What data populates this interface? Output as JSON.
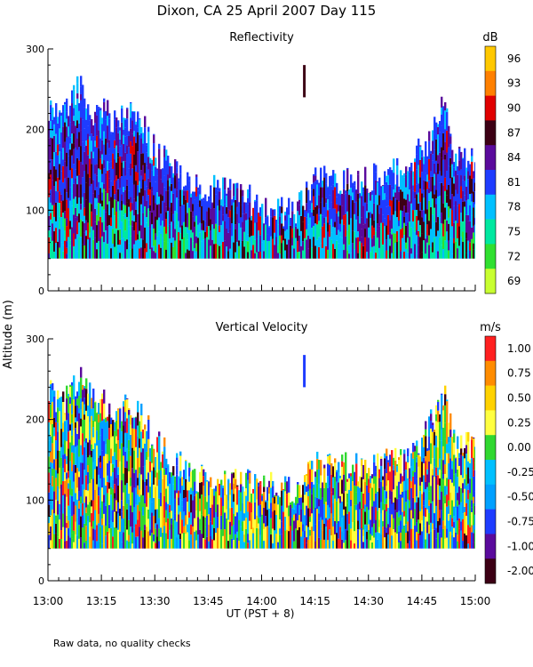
{
  "page_title": "Dixon, CA 25 April 2007  Day 115",
  "footnote": "Raw data, no quality checks",
  "xaxis": {
    "label": "UT  (PST + 8)",
    "ticks": [
      "13:00",
      "13:15",
      "13:30",
      "13:45",
      "14:00",
      "14:15",
      "14:30",
      "14:45",
      "15:00"
    ],
    "range_minutes": [
      0,
      120
    ]
  },
  "yaxis_label": "Altitude (m)",
  "chart_data": [
    {
      "type": "heatmap",
      "title": "Reflectivity",
      "ylim": [
        0,
        300
      ],
      "yticks": [
        "0",
        "100",
        "200",
        "300"
      ],
      "colorbar": {
        "unit": "dB",
        "labels": [
          "96",
          "93",
          "90",
          "87",
          "84",
          "81",
          "78",
          "75",
          "72",
          "69"
        ],
        "colors": [
          "#ffc800",
          "#ff8000",
          "#e00000",
          "#3c0014",
          "#5a0a9c",
          "#1e3cff",
          "#00c0ff",
          "#00e8a0",
          "#30e030",
          "#c8ff30"
        ]
      },
      "field": {
        "base_m": 40,
        "top_profile_m": [
          {
            "t": 0,
            "top": 230
          },
          {
            "t": 5,
            "top": 225
          },
          {
            "t": 9,
            "top": 255
          },
          {
            "t": 12,
            "top": 225
          },
          {
            "t": 18,
            "top": 215
          },
          {
            "t": 25,
            "top": 215
          },
          {
            "t": 30,
            "top": 170
          },
          {
            "t": 35,
            "top": 150
          },
          {
            "t": 40,
            "top": 130
          },
          {
            "t": 45,
            "top": 125
          },
          {
            "t": 55,
            "top": 120
          },
          {
            "t": 60,
            "top": 100
          },
          {
            "t": 70,
            "top": 100
          },
          {
            "t": 75,
            "top": 140
          },
          {
            "t": 90,
            "top": 140
          },
          {
            "t": 100,
            "top": 150
          },
          {
            "t": 106,
            "top": 180
          },
          {
            "t": 111,
            "top": 230
          },
          {
            "t": 114,
            "top": 170
          },
          {
            "t": 120,
            "top": 165
          }
        ]
      },
      "marker": {
        "time_min": 72,
        "alt_low": 240,
        "alt_high": 280,
        "color": "#3c0014"
      }
    },
    {
      "type": "heatmap",
      "title": "Vertical Velocity",
      "ylim": [
        0,
        300
      ],
      "yticks": [
        "0",
        "100",
        "200",
        "300"
      ],
      "colorbar": {
        "unit": "m/s",
        "labels": [
          "1.00",
          "0.75",
          "0.50",
          "0.25",
          "0.00",
          "-0.25",
          "-0.50",
          "-0.75",
          "-1.00",
          "-2.00"
        ],
        "colors": [
          "#ff2020",
          "#ff8c00",
          "#ffd200",
          "#ffff40",
          "#30d830",
          "#00c0ff",
          "#00a0ff",
          "#1e3cff",
          "#5a0a9c",
          "#3c0014"
        ]
      },
      "field": {
        "base_m": 40,
        "top_profile_m": [
          {
            "t": 0,
            "top": 230
          },
          {
            "t": 5,
            "top": 225
          },
          {
            "t": 9,
            "top": 255
          },
          {
            "t": 12,
            "top": 225
          },
          {
            "t": 18,
            "top": 215
          },
          {
            "t": 25,
            "top": 215
          },
          {
            "t": 30,
            "top": 170
          },
          {
            "t": 35,
            "top": 150
          },
          {
            "t": 40,
            "top": 130
          },
          {
            "t": 45,
            "top": 125
          },
          {
            "t": 55,
            "top": 120
          },
          {
            "t": 60,
            "top": 115
          },
          {
            "t": 70,
            "top": 115
          },
          {
            "t": 75,
            "top": 140
          },
          {
            "t": 90,
            "top": 140
          },
          {
            "t": 100,
            "top": 150
          },
          {
            "t": 106,
            "top": 180
          },
          {
            "t": 111,
            "top": 230
          },
          {
            "t": 114,
            "top": 170
          },
          {
            "t": 120,
            "top": 165
          }
        ]
      },
      "marker": {
        "time_min": 72,
        "alt_low": 240,
        "alt_high": 280,
        "color": "#1e3cff"
      }
    }
  ]
}
